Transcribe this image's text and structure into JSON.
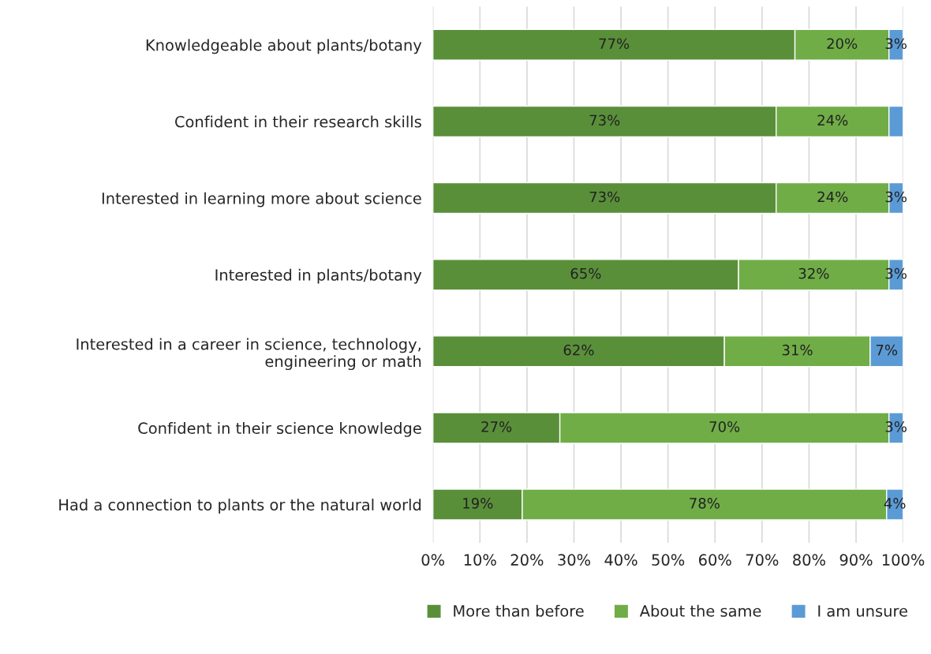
{
  "chart_data": {
    "type": "bar",
    "orientation": "horizontal",
    "stacked": true,
    "categories": [
      "Knowledgeable about plants/botany",
      "Confident in their research skills",
      "Interested in learning more about science",
      "Interested in plants/botany",
      "Interested in a career in science, technology,\nengineering or math",
      "Confident in their science knowledge",
      "Had a connection to plants or the natural world"
    ],
    "series": [
      {
        "name": "More than before",
        "color": "#5a8f3a",
        "values": [
          77,
          73,
          73,
          65,
          62,
          27,
          19
        ],
        "value_labels": [
          "77%",
          "73%",
          "73%",
          "65%",
          "62%",
          "27%",
          "19%"
        ]
      },
      {
        "name": "About the same",
        "color": "#70ad47",
        "values": [
          20,
          24,
          24,
          32,
          31,
          70,
          77.5
        ],
        "value_labels": [
          "20%",
          "24%",
          "24%",
          "32%",
          "31%",
          "70%",
          "78%"
        ]
      },
      {
        "name": "I am unsure",
        "color": "#5b9bd5",
        "values": [
          3,
          3,
          3,
          3,
          7,
          3,
          3.5
        ],
        "value_labels": [
          "3%",
          null,
          "3%",
          "3%",
          "7%",
          "3%",
          "4%"
        ]
      }
    ],
    "xlim": [
      0,
      100
    ],
    "xticks": [
      {
        "value": 0,
        "label": "0%"
      },
      {
        "value": 10,
        "label": "10%"
      },
      {
        "value": 20,
        "label": "20%"
      },
      {
        "value": 30,
        "label": "30%"
      },
      {
        "value": 40,
        "label": "40%"
      },
      {
        "value": 50,
        "label": "50%"
      },
      {
        "value": 60,
        "label": "60%"
      },
      {
        "value": 70,
        "label": "70%"
      },
      {
        "value": 80,
        "label": "80%"
      },
      {
        "value": 90,
        "label": "90%"
      },
      {
        "value": 100,
        "label": "100%"
      }
    ],
    "grid": "x",
    "legend": "bottom"
  }
}
